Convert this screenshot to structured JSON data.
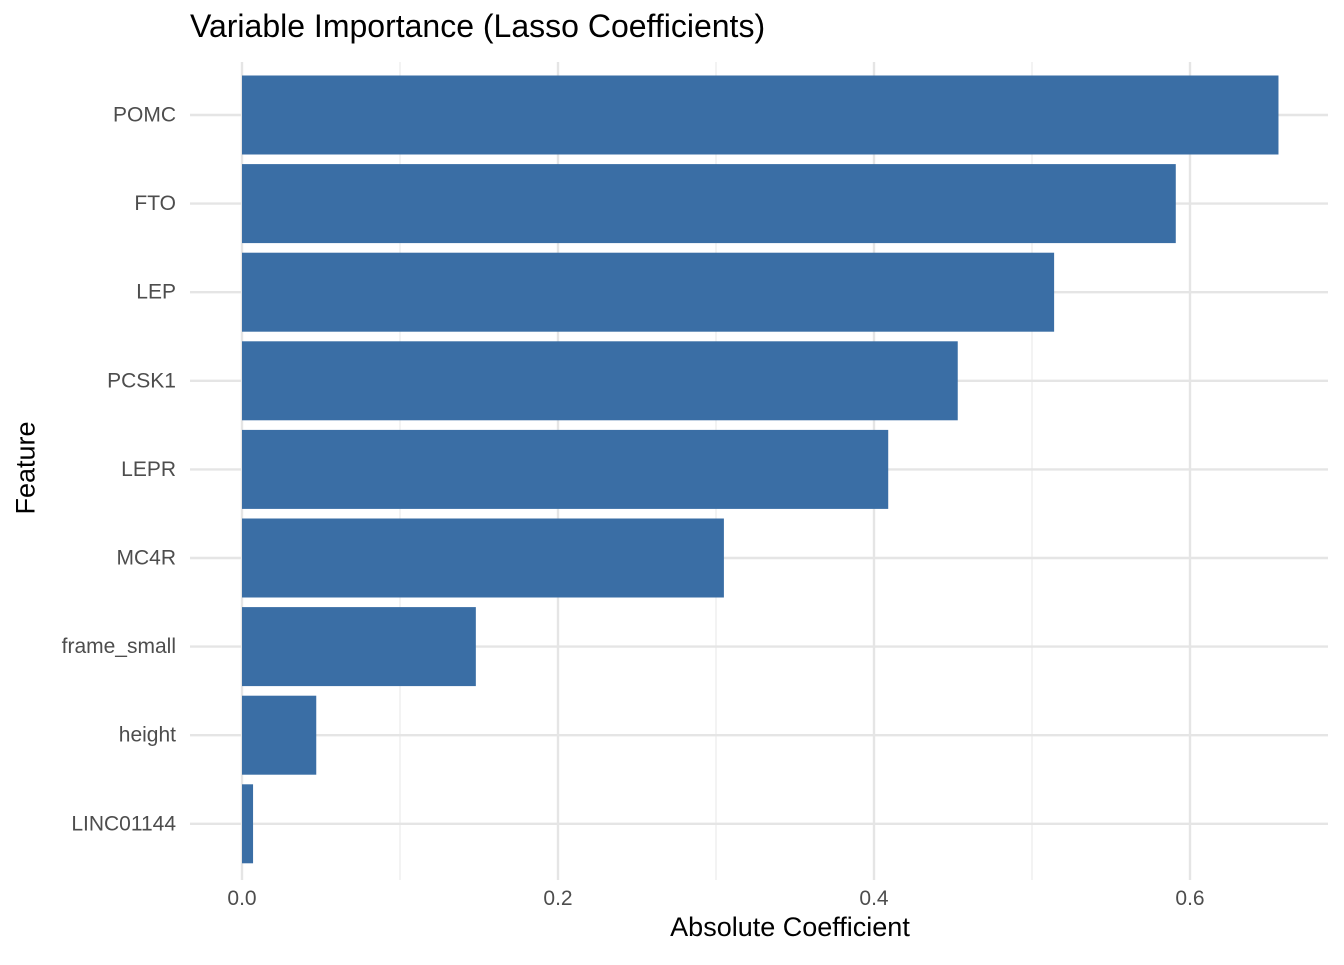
{
  "chart_data": {
    "type": "bar",
    "orientation": "horizontal",
    "title": "Variable Importance (Lasso Coefficients)",
    "xlabel": "Absolute Coefficient",
    "ylabel": "Feature",
    "categories": [
      "POMC",
      "FTO",
      "LEP",
      "PCSK1",
      "LEPR",
      "MC4R",
      "frame_small",
      "height",
      "LINC01144"
    ],
    "values": [
      0.656,
      0.591,
      0.514,
      0.453,
      0.409,
      0.305,
      0.148,
      0.047,
      0.007
    ],
    "xlim": [
      0,
      0.68
    ],
    "xticks": [
      0.0,
      0.2,
      0.4,
      0.6
    ],
    "xtick_labels": [
      "0.0",
      "0.2",
      "0.4",
      "0.6"
    ],
    "bar_color": "#3A6EA5",
    "grid": true,
    "legend": "none"
  }
}
